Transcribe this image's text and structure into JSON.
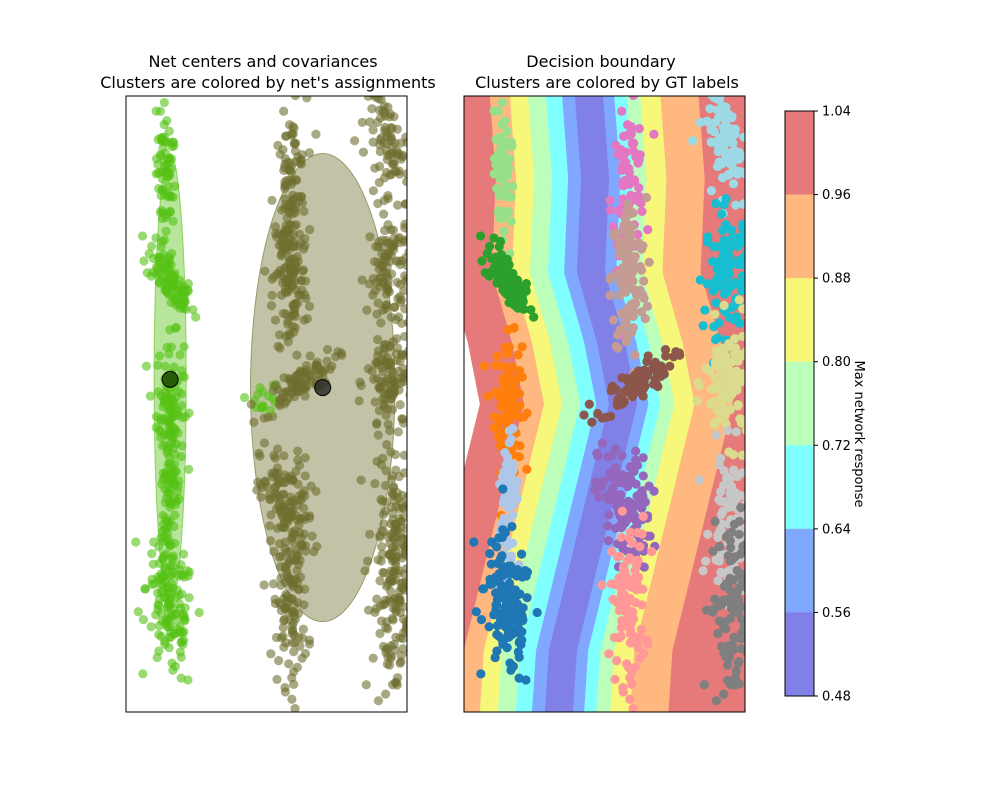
{
  "chart_data": [
    {
      "type": "scatter",
      "title_line1": "Net centers and covariances",
      "title_line2": "Clusters are colored by net's assignments",
      "xlabel": "",
      "ylabel": "",
      "xlim": [
        -0.5,
        6.5
      ],
      "ylim": [
        -0.5,
        14.5
      ],
      "ticks_visible": false,
      "series": [
        {
          "color": "#55c214",
          "clusters": [
            {
              "cx": 0.5,
              "cy": 12.5,
              "sx": 0.12,
              "sy": 0.9,
              "rho": -0.3,
              "n": 70
            },
            {
              "cx": 0.6,
              "cy": 10.0,
              "sx": 0.3,
              "sy": 0.45,
              "rho": -0.75,
              "n": 90
            },
            {
              "cx": 0.6,
              "cy": 7.0,
              "sx": 0.17,
              "sy": 0.8,
              "rho": 0.0,
              "n": 110
            },
            {
              "cx": 0.6,
              "cy": 4.5,
              "sx": 0.12,
              "sy": 0.8,
              "rho": 0.3,
              "n": 70
            },
            {
              "cx": 0.6,
              "cy": 2.0,
              "sx": 0.3,
              "sy": 0.9,
              "rho": -0.3,
              "n": 130
            },
            {
              "cx": 2.9,
              "cy": 7.2,
              "sx": 0.2,
              "sy": 0.2,
              "rho": 0.0,
              "n": 15
            }
          ]
        },
        {
          "color": "#6e6e2e",
          "clusters": [
            {
              "cx": 3.6,
              "cy": 12.3,
              "sx": 0.2,
              "sy": 0.9,
              "rho": 0.2,
              "n": 90
            },
            {
              "cx": 3.6,
              "cy": 10.0,
              "sx": 0.22,
              "sy": 1.0,
              "rho": 0.0,
              "n": 120
            },
            {
              "cx": 3.8,
              "cy": 7.5,
              "sx": 0.45,
              "sy": 0.35,
              "rho": 0.8,
              "n": 90
            },
            {
              "cx": 3.5,
              "cy": 4.5,
              "sx": 0.33,
              "sy": 0.7,
              "rho": -0.2,
              "n": 120
            },
            {
              "cx": 3.6,
              "cy": 2.2,
              "sx": 0.22,
              "sy": 1.0,
              "rho": 0.0,
              "n": 110
            },
            {
              "cx": 6.1,
              "cy": 13.2,
              "sx": 0.32,
              "sy": 0.7,
              "rho": -0.6,
              "n": 90
            },
            {
              "cx": 6.1,
              "cy": 10.2,
              "sx": 0.3,
              "sy": 0.75,
              "rho": 0.0,
              "n": 110
            },
            {
              "cx": 6.1,
              "cy": 7.5,
              "sx": 0.3,
              "sy": 0.7,
              "rho": 0.0,
              "n": 110
            },
            {
              "cx": 6.2,
              "cy": 4.0,
              "sx": 0.28,
              "sy": 0.9,
              "rho": 0.0,
              "n": 110
            },
            {
              "cx": 6.2,
              "cy": 2.0,
              "sx": 0.28,
              "sy": 1.2,
              "rho": 0.0,
              "n": 120
            }
          ]
        }
      ],
      "net_centers": [
        {
          "x": 0.6,
          "y": 7.6,
          "sx": 0.4,
          "sy": 5.5,
          "fill": "#55c214",
          "edge": "#1f4a05"
        },
        {
          "x": 4.4,
          "y": 7.4,
          "sx": 1.8,
          "sy": 5.7,
          "fill": "#6e6e2e",
          "edge": "#2e2e2e"
        }
      ]
    },
    {
      "type": "scatter",
      "title_line1": "Decision boundary",
      "title_line2": "Clusters are colored by GT labels",
      "xlabel": "",
      "ylabel": "",
      "xlim": [
        -0.5,
        6.5
      ],
      "ylim": [
        -0.5,
        14.5
      ],
      "ticks_visible": false,
      "contour_levels": [
        0.48,
        0.56,
        0.64,
        0.72,
        0.8,
        0.88,
        0.96,
        1.04
      ],
      "contour_colors": [
        "#8080e6",
        "#80a8ff",
        "#80ffff",
        "#bbffbb",
        "#f7f77a",
        "#ffb880",
        "#e67a7a"
      ],
      "boundary_curve": [
        [
          2.55,
          14.5
        ],
        [
          2.7,
          12.5
        ],
        [
          2.6,
          10.2
        ],
        [
          3.1,
          8.5
        ],
        [
          3.4,
          7.0
        ],
        [
          2.9,
          5.0
        ],
        [
          2.4,
          3.0
        ],
        [
          1.9,
          1.0
        ],
        [
          1.8,
          -0.5
        ]
      ],
      "colorbar": {
        "label": "Max network response",
        "ticks": [
          "1.04",
          "0.96",
          "0.88",
          "0.80",
          "0.72",
          "0.64",
          "0.56",
          "0.48"
        ]
      },
      "clusters": [
        {
          "color": "#98df8a",
          "cx": 0.5,
          "cy": 12.5,
          "sx": 0.12,
          "sy": 0.9,
          "rho": -0.3,
          "n": 70
        },
        {
          "color": "#2ca02c",
          "cx": 0.6,
          "cy": 10.0,
          "sx": 0.3,
          "sy": 0.45,
          "rho": -0.75,
          "n": 90
        },
        {
          "color": "#ff7f0e",
          "cx": 0.6,
          "cy": 7.0,
          "sx": 0.17,
          "sy": 0.8,
          "rho": 0.0,
          "n": 110
        },
        {
          "color": "#aec7e8",
          "cx": 0.6,
          "cy": 4.5,
          "sx": 0.12,
          "sy": 0.8,
          "rho": 0.3,
          "n": 70
        },
        {
          "color": "#1f77b4",
          "cx": 0.6,
          "cy": 2.0,
          "sx": 0.3,
          "sy": 0.9,
          "rho": -0.3,
          "n": 130
        },
        {
          "color": "#e377c2",
          "cx": 3.6,
          "cy": 12.3,
          "sx": 0.2,
          "sy": 0.9,
          "rho": 0.2,
          "n": 90
        },
        {
          "color": "#c49c94",
          "cx": 3.6,
          "cy": 10.0,
          "sx": 0.22,
          "sy": 1.0,
          "rho": 0.0,
          "n": 120
        },
        {
          "color": "#8c564b",
          "cx": 3.8,
          "cy": 7.5,
          "sx": 0.45,
          "sy": 0.35,
          "rho": 0.8,
          "n": 90
        },
        {
          "color": "#9467bd",
          "cx": 3.5,
          "cy": 4.5,
          "sx": 0.33,
          "sy": 0.7,
          "rho": -0.2,
          "n": 120
        },
        {
          "color": "#ff9896",
          "cx": 3.6,
          "cy": 2.2,
          "sx": 0.22,
          "sy": 1.0,
          "rho": 0.0,
          "n": 110
        },
        {
          "color": "#9edae5",
          "cx": 6.1,
          "cy": 13.2,
          "sx": 0.32,
          "sy": 0.7,
          "rho": -0.6,
          "n": 90
        },
        {
          "color": "#17becf",
          "cx": 6.1,
          "cy": 10.2,
          "sx": 0.3,
          "sy": 0.75,
          "rho": 0.0,
          "n": 110
        },
        {
          "color": "#dbdb8d",
          "cx": 6.1,
          "cy": 7.5,
          "sx": 0.3,
          "sy": 0.7,
          "rho": 0.0,
          "n": 110
        },
        {
          "color": "#c7c7c7",
          "cx": 6.2,
          "cy": 4.0,
          "sx": 0.28,
          "sy": 0.9,
          "rho": 0.0,
          "n": 110
        },
        {
          "color": "#7f7f7f",
          "cx": 6.2,
          "cy": 2.0,
          "sx": 0.28,
          "sy": 1.2,
          "rho": 0.0,
          "n": 120
        }
      ]
    }
  ]
}
